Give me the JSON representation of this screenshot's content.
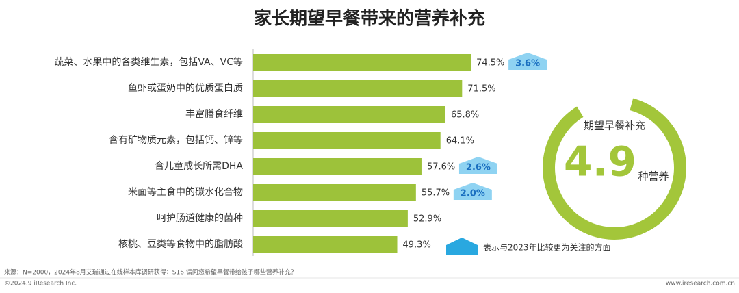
{
  "chart_data": {
    "type": "bar",
    "orientation": "horizontal",
    "title": "家长期望早餐带来的营养补充",
    "categories": [
      "蔬菜、水果中的各类维生素，包括VA、VC等",
      "鱼虾或蛋奶中的优质蛋白质",
      "丰富膳食纤维",
      "含有矿物质元素，包括钙、锌等",
      "含儿童成长所需DHA",
      "米面等主食中的碳水化合物",
      "呵护肠道健康的菌种",
      "核桃、豆类等食物中的脂肪酸"
    ],
    "values": [
      74.5,
      71.5,
      65.8,
      64.1,
      57.6,
      55.7,
      52.9,
      49.3
    ],
    "value_labels": [
      "74.5%",
      "71.5%",
      "65.8%",
      "64.1%",
      "57.6%",
      "55.7%",
      "52.9%",
      "49.3%"
    ],
    "color": "#9dc23a",
    "increase_values": [
      3.6,
      null,
      null,
      null,
      2.6,
      2.0,
      null,
      null
    ],
    "increase_labels": [
      "3.6%",
      null,
      null,
      null,
      "2.6%",
      "2.0%",
      null,
      null
    ],
    "legend_text": "表示与2023年比较更为关注的方面",
    "summary": {
      "label": "期望早餐补充",
      "value": 4.9,
      "unit": "种营养"
    },
    "source": "来源：N=2000，2024年8月艾瑞通过在线样本库调研获得；S16.请问您希望早餐带给孩子哪些营养补充？",
    "copyright": "©2024.9 iResearch Inc.",
    "website": "www.iresearch.com.cn"
  }
}
